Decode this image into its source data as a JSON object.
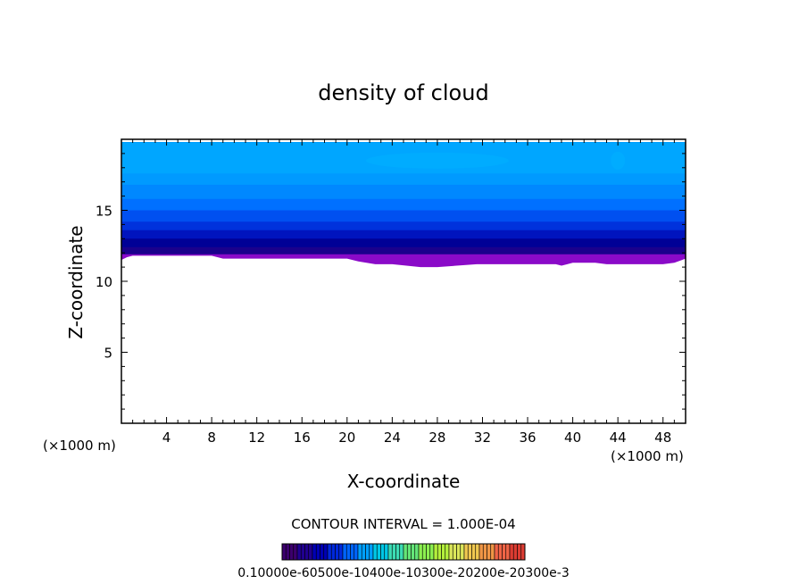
{
  "chart_data": {
    "type": "heatmap",
    "title": "density of cloud",
    "xlabel": "X-coordinate",
    "ylabel": "Z-coordinate",
    "x_unit_left": "(×1000 m)",
    "x_unit_right": "(×1000 m)",
    "xlim": [
      0,
      50
    ],
    "ylim": [
      0,
      20
    ],
    "xticks": [
      4,
      8,
      12,
      16,
      20,
      24,
      28,
      32,
      36,
      40,
      44,
      48
    ],
    "yticks": [
      5,
      10,
      15
    ],
    "contour_interval_text": "CONTOUR INTERVAL = 1.000E-04",
    "colorbar_labels_text": "0.10000e-60500e-10400e-10300e-20200e-20300e-3",
    "cloud_top_z": 19.8,
    "cloud_base": {
      "x": [
        0,
        0.5,
        1,
        4,
        8,
        9,
        12,
        16,
        20,
        21,
        22.5,
        24,
        26.5,
        28,
        31.5,
        34,
        38.5,
        39,
        40,
        42,
        43,
        46,
        48,
        49,
        50
      ],
      "z": [
        11.5,
        11.7,
        11.8,
        11.8,
        11.8,
        11.6,
        11.6,
        11.6,
        11.6,
        11.4,
        11.2,
        11.2,
        11.0,
        11.0,
        11.2,
        11.2,
        11.2,
        11.1,
        11.3,
        11.3,
        11.2,
        11.2,
        11.2,
        11.3,
        11.6
      ]
    },
    "color_levels": [
      {
        "z_from": 11.0,
        "color": "#8a0ac8"
      },
      {
        "z_from": 11.9,
        "color": "#1a008c"
      },
      {
        "z_from": 12.4,
        "color": "#000096"
      },
      {
        "z_from": 13.0,
        "color": "#0014be"
      },
      {
        "z_from": 13.6,
        "color": "#0032dc"
      },
      {
        "z_from": 14.2,
        "color": "#0050f0"
      },
      {
        "z_from": 15.0,
        "color": "#0070ff"
      },
      {
        "z_from": 15.8,
        "color": "#0088ff"
      },
      {
        "z_from": 16.8,
        "color": "#009aff"
      },
      {
        "z_from": 17.6,
        "color": "#00a6ff"
      }
    ],
    "colorbar_colors": [
      "#3c006e",
      "#200090",
      "#0000b4",
      "#0028dc",
      "#0064ff",
      "#00a0ff",
      "#00c8e6",
      "#3cdcb4",
      "#64e678",
      "#8cf050",
      "#b4f03c",
      "#dce65a",
      "#f0c850",
      "#f09646",
      "#f06446",
      "#dc3c32"
    ]
  }
}
